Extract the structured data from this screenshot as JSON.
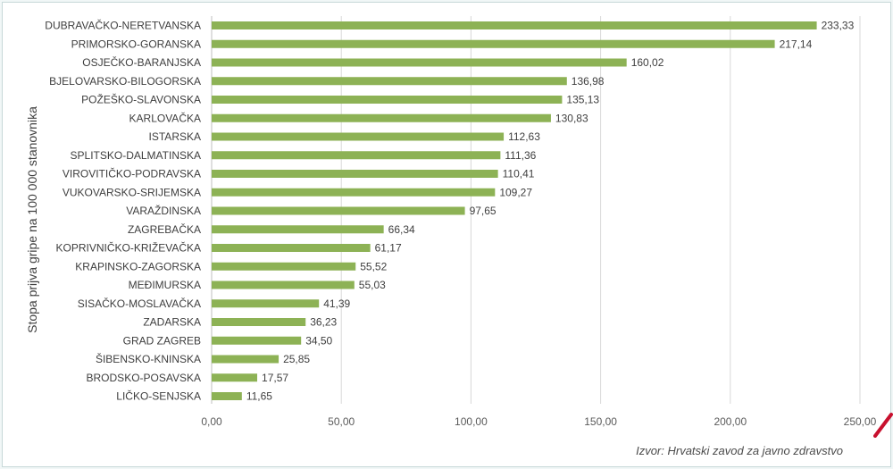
{
  "chart_data": {
    "type": "bar",
    "orientation": "horizontal",
    "ylabel": "Stopa prijva gripe na 100 000 stanovnika",
    "source_note": "Izvor: Hrvatski zavod za javno zdravstvo",
    "xlim": [
      0,
      250
    ],
    "ticks": [
      "0,00",
      "50,00",
      "100,00",
      "150,00",
      "200,00",
      "250,00"
    ],
    "tick_values": [
      0,
      50,
      100,
      150,
      200,
      250
    ],
    "grid": true,
    "bar_color": "#8db255",
    "categories": [
      "DUBRAVAČKO-NERETVANSKA",
      "PRIMORSKO-GORANSKA",
      "OSJEČKO-BARANJSKA",
      "BJELOVARSKO-BILOGORSKA",
      "POŽEŠKO-SLAVONSKA",
      "KARLOVAČKA",
      "ISTARSKA",
      "SPLITSKO-DALMATINSKA",
      "VIROVITIČKO-PODRAVSKA",
      "VUKOVARSKO-SRIJEMSKA",
      "VARAŽDINSKA",
      "ZAGREBAČKA",
      "KOPRIVNIČKO-KRIŽEVAČKA",
      "KRAPINSKO-ZAGORSKA",
      "MEĐIMURSKA",
      "SISAČKO-MOSLAVAČKA",
      "ZADARSKA",
      "GRAD ZAGREB",
      "ŠIBENSKO-KNINSKA",
      "BRODSKO-POSAVSKA",
      "LIČKO-SENJSKA"
    ],
    "values": [
      233.33,
      217.14,
      160.02,
      136.98,
      135.13,
      130.83,
      112.63,
      111.36,
      110.41,
      109.27,
      97.65,
      66.34,
      61.17,
      55.52,
      55.03,
      41.39,
      36.23,
      34.5,
      25.85,
      17.57,
      11.65
    ],
    "value_labels": [
      "233,33",
      "217,14",
      "160,02",
      "136,98",
      "135,13",
      "130,83",
      "112,63",
      "111,36",
      "110,41",
      "109,27",
      "97,65",
      "66,34",
      "61,17",
      "55,52",
      "55,03",
      "41,39",
      "36,23",
      "34,50",
      "25,85",
      "17,57",
      "11,65"
    ]
  }
}
